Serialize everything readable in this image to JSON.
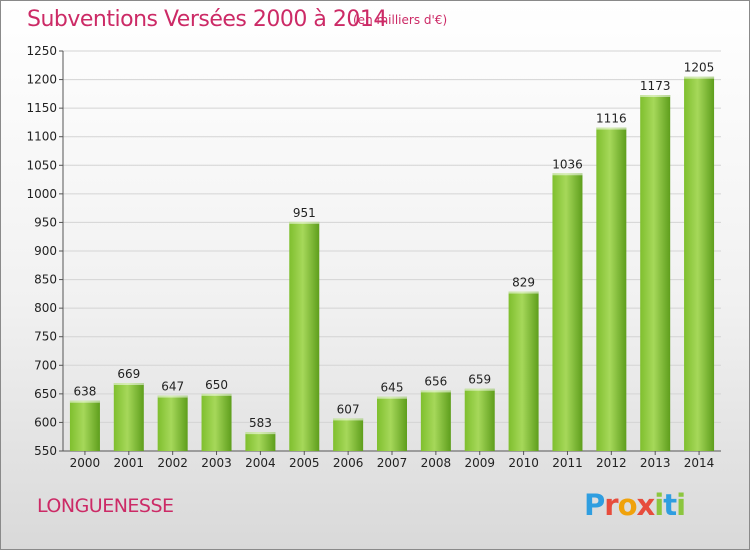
{
  "header": {
    "title": "Subventions Versées 2000 à 2014",
    "subtitle": "(en milliers d'€)"
  },
  "footer": {
    "commune": "LONGUENESSE",
    "logo_text": "Proxiti"
  },
  "colors": {
    "accent": "#cc2a66",
    "bar_light": "#a6d85a",
    "bar_dark": "#5e9e1c"
  },
  "chart_data": {
    "type": "bar",
    "title": "Subventions Versées 2000 à 2014",
    "subtitle": "(en milliers d'€)",
    "categories": [
      "2000",
      "2001",
      "2002",
      "2003",
      "2004",
      "2005",
      "2006",
      "2007",
      "2008",
      "2009",
      "2010",
      "2011",
      "2012",
      "2013",
      "2014"
    ],
    "values": [
      638,
      669,
      647,
      650,
      583,
      951,
      607,
      645,
      656,
      659,
      829,
      1036,
      1116,
      1173,
      1205
    ],
    "xlabel": "",
    "ylabel": "",
    "ylim": [
      550,
      1250
    ],
    "yticks": [
      550,
      600,
      650,
      700,
      750,
      800,
      850,
      900,
      950,
      1000,
      1050,
      1100,
      1150,
      1200,
      1250
    ],
    "grid": true,
    "legend": "none"
  }
}
